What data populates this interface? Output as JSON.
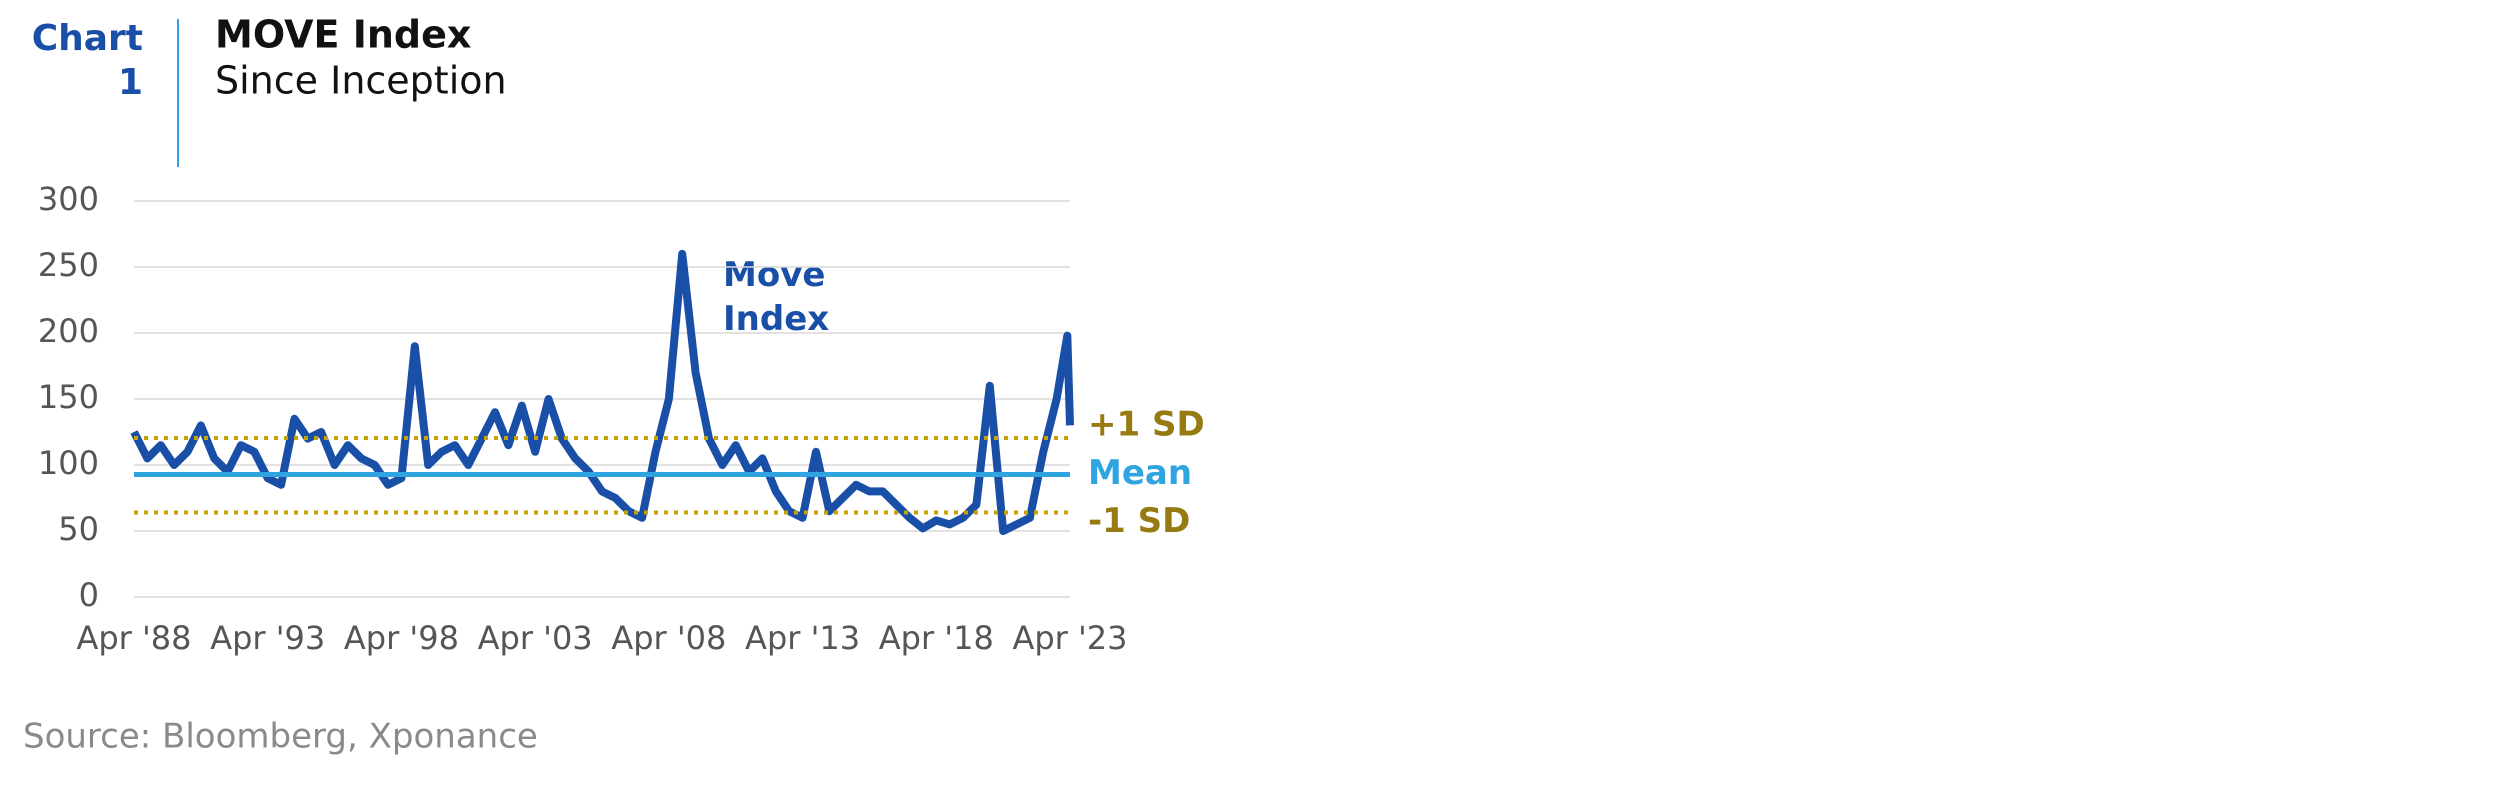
{
  "header": {
    "chart_label": "Chart",
    "chart_number": "1"
  },
  "chart_data": {
    "type": "line",
    "title": "MOVE Index",
    "subtitle": "Since Inception",
    "annotation": "Move Index",
    "x": [
      1988.25,
      1988.75,
      1989.25,
      1989.75,
      1990.25,
      1990.75,
      1991.25,
      1991.75,
      1992.25,
      1992.75,
      1993.25,
      1993.75,
      1994.25,
      1994.75,
      1995.25,
      1995.75,
      1996.25,
      1996.75,
      1997.25,
      1997.75,
      1998.25,
      1998.75,
      1999.25,
      1999.75,
      2000.25,
      2000.75,
      2001.25,
      2001.75,
      2002.25,
      2002.75,
      2003.25,
      2003.75,
      2004.25,
      2004.75,
      2005.25,
      2005.75,
      2006.25,
      2006.75,
      2007.25,
      2007.75,
      2008.25,
      2008.75,
      2009.25,
      2009.75,
      2010.25,
      2010.75,
      2011.25,
      2011.75,
      2012.25,
      2012.75,
      2013.25,
      2013.75,
      2014.25,
      2014.75,
      2015.25,
      2015.75,
      2016.25,
      2016.75,
      2017.25,
      2017.75,
      2018.25,
      2018.75,
      2019.25,
      2019.75,
      2020.25,
      2020.75,
      2021.25,
      2021.75,
      2022.25,
      2022.75,
      2023.15,
      2023.25
    ],
    "series": [
      {
        "name": "Move Index",
        "color": "#1a4fa8",
        "values": [
          125,
          105,
          115,
          100,
          110,
          130,
          105,
          95,
          115,
          110,
          90,
          85,
          135,
          120,
          125,
          100,
          115,
          105,
          100,
          85,
          90,
          190,
          100,
          110,
          115,
          100,
          120,
          140,
          115,
          145,
          110,
          150,
          120,
          105,
          95,
          80,
          75,
          65,
          60,
          110,
          150,
          260,
          170,
          120,
          100,
          115,
          95,
          105,
          80,
          65,
          60,
          110,
          65,
          75,
          85,
          80,
          80,
          70,
          60,
          52,
          58,
          55,
          60,
          70,
          160,
          50,
          55,
          60,
          110,
          150,
          198,
          130
        ]
      }
    ],
    "reference_lines": [
      {
        "label": "+1 SD",
        "value": 120.5,
        "color": "#c8a200",
        "label_color": "#977a12"
      },
      {
        "label": "Mean",
        "value": 92.8,
        "color": "#2fa4e0",
        "label_color": "#2fa4e0"
      },
      {
        "label": "-1 SD",
        "value": 64,
        "color": "#c8a200",
        "label_color": "#977a12"
      }
    ],
    "xlim": [
      1988.25,
      2023.25
    ],
    "xticks": [
      {
        "value": 1988.25,
        "label": "Apr '88"
      },
      {
        "value": 1993.25,
        "label": "Apr '93"
      },
      {
        "value": 1998.25,
        "label": "Apr '98"
      },
      {
        "value": 2003.25,
        "label": "Apr '03"
      },
      {
        "value": 2008.25,
        "label": "Apr '08"
      },
      {
        "value": 2013.25,
        "label": "Apr '13"
      },
      {
        "value": 2018.25,
        "label": "Apr '18"
      },
      {
        "value": 2023.25,
        "label": "Apr '23"
      }
    ],
    "ylim": [
      0,
      300
    ],
    "yticks": [
      0,
      50,
      100,
      150,
      200,
      250,
      300
    ],
    "grid": true
  },
  "source": "Source: Bloomberg, Xponance"
}
